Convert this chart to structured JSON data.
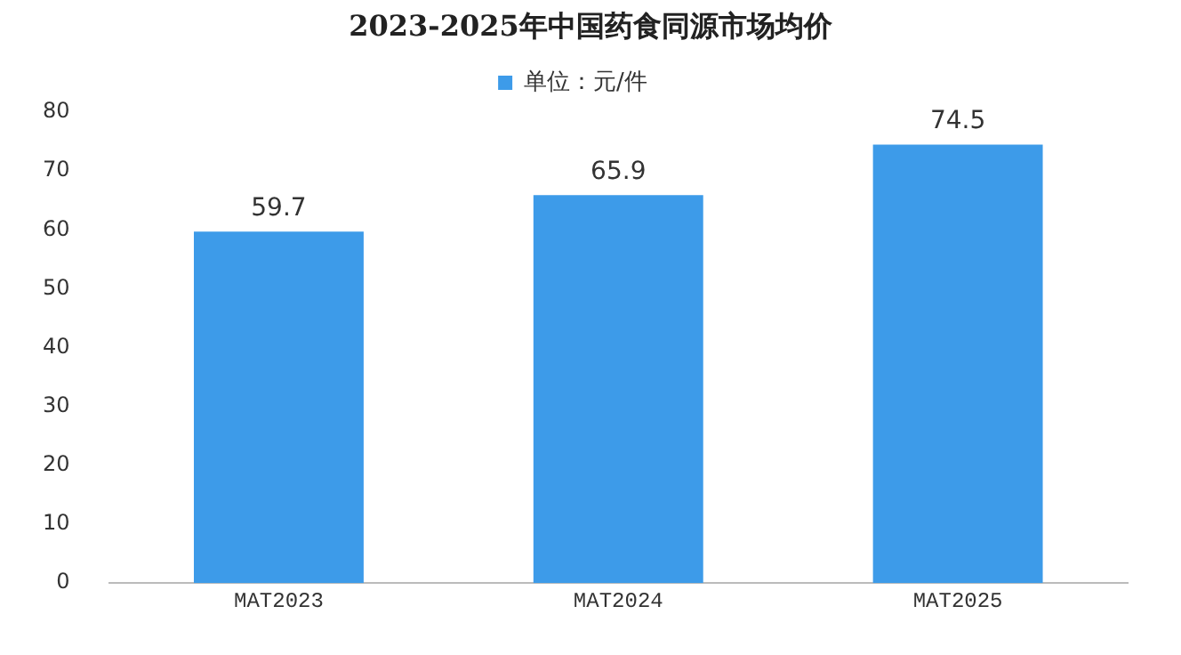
{
  "chart_data": {
    "type": "bar",
    "title": "2023-2025年中国药食同源市场均价",
    "categories": [
      "MAT2023",
      "MAT2024",
      "MAT2025"
    ],
    "series": [
      {
        "name": "单位：元/件",
        "color": "#3d9be9",
        "values": [
          59.7,
          65.9,
          74.5
        ]
      }
    ],
    "ylim": [
      0,
      80
    ],
    "yticks": [
      0,
      10,
      20,
      30,
      40,
      50,
      60,
      70,
      80
    ],
    "grid": false,
    "legend": "top",
    "data_labels": true
  }
}
